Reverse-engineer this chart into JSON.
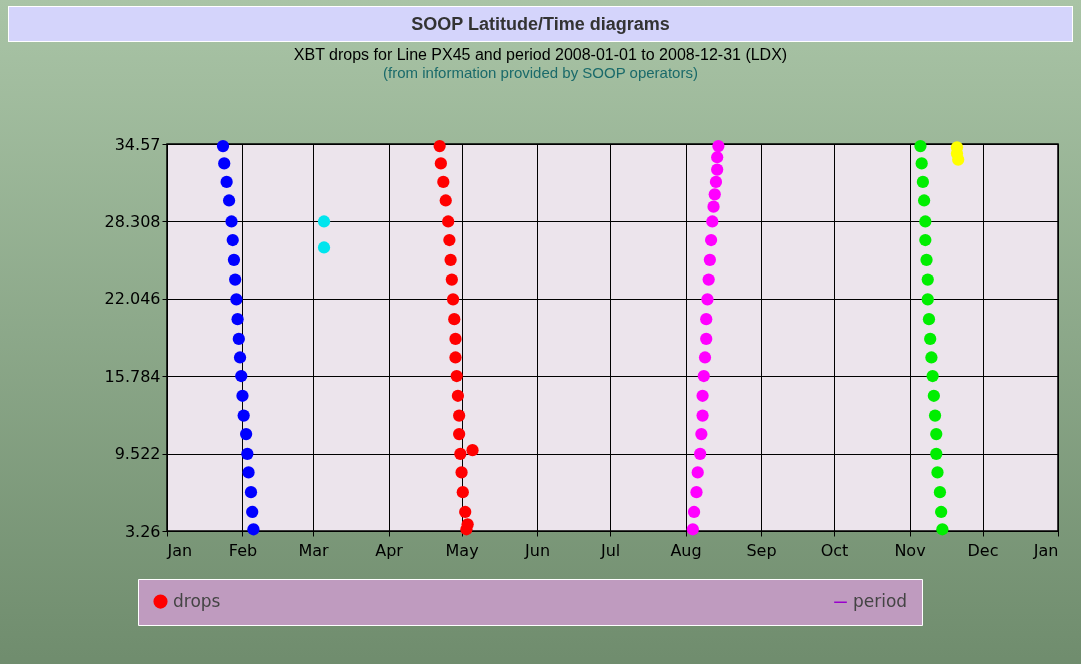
{
  "chart_data": {
    "type": "scatter",
    "title": "SOOP Latitude/Time diagrams",
    "subtitle": "XBT drops for Line PX45 and period 2008-01-01 to 2008-12-31 (LDX)",
    "annotations": [
      "(from information provided by SOOP operators)"
    ],
    "xlim": [
      "2008-01-01T00:00",
      "2009-01-01T00:00"
    ],
    "xticks": [
      {
        "value": "2008-01-01T00:00",
        "label": "Jan"
      },
      {
        "value": "2008-02-01T00:00",
        "label": "Feb"
      },
      {
        "value": "2008-03-01T00:00",
        "label": "Mar"
      },
      {
        "value": "2008-04-01T00:00",
        "label": "Apr"
      },
      {
        "value": "2008-05-01T00:00",
        "label": "May"
      },
      {
        "value": "2008-06-01T00:00",
        "label": "Jun"
      },
      {
        "value": "2008-07-01T00:00",
        "label": "Jul"
      },
      {
        "value": "2008-08-01T00:00",
        "label": "Aug"
      },
      {
        "value": "2008-09-01T00:00",
        "label": "Sep"
      },
      {
        "value": "2008-10-01T00:00",
        "label": "Oct"
      },
      {
        "value": "2008-11-01T00:00",
        "label": "Nov"
      },
      {
        "value": "2008-12-01T00:00",
        "label": "Dec"
      },
      {
        "value": "2009-01-01T00:00",
        "label": "Jan"
      }
    ],
    "ylim": [
      3.26,
      34.57
    ],
    "yticks": [
      3.26,
      9.522,
      15.784,
      22.046,
      28.308,
      34.57
    ],
    "grid": true,
    "legend": "bottom",
    "marker": "circle",
    "series": [
      {
        "color": "#0000ff",
        "x": [
          "2008-01-24T00:00",
          "2008-01-24T12:00",
          "2008-01-25T12:00",
          "2008-01-26T12:00",
          "2008-01-27T12:00",
          "2008-01-28T00:00",
          "2008-01-28T12:00",
          "2008-01-29T00:00",
          "2008-01-29T12:00",
          "2008-01-30T00:00",
          "2008-01-30T12:00",
          "2008-01-31T00:00",
          "2008-01-31T12:00",
          "2008-02-01T00:00",
          "2008-02-01T12:00",
          "2008-02-02T12:00",
          "2008-02-03T00:00",
          "2008-02-03T12:00",
          "2008-02-04T12:00",
          "2008-02-05T00:00",
          "2008-02-05T12:00"
        ],
        "values": [
          34.4,
          33.0,
          31.5,
          30.0,
          28.3,
          26.8,
          25.2,
          23.6,
          22.0,
          20.4,
          18.8,
          17.3,
          15.8,
          14.2,
          12.6,
          11.1,
          9.5,
          8.0,
          6.4,
          4.8,
          3.4
        ]
      },
      {
        "color": "#00e5ee",
        "x": [
          "2008-03-05T12:00",
          "2008-03-05T12:00"
        ],
        "values": [
          28.3,
          26.2
        ]
      },
      {
        "name": "drops",
        "color": "#ff0000",
        "x": [
          "2008-04-22T00:00",
          "2008-04-22T12:00",
          "2008-04-23T12:00",
          "2008-04-24T12:00",
          "2008-04-25T12:00",
          "2008-04-26T00:00",
          "2008-04-26T12:00",
          "2008-04-27T00:00",
          "2008-04-27T12:00",
          "2008-04-28T00:00",
          "2008-04-28T12:00",
          "2008-04-28T12:00",
          "2008-04-29T00:00",
          "2008-04-29T12:00",
          "2008-04-30T00:00",
          "2008-04-30T00:00",
          "2008-04-30T12:00",
          "2008-05-05T12:00",
          "2008-05-01T00:00",
          "2008-05-01T12:00",
          "2008-05-02T12:00",
          "2008-05-03T00:00",
          "2008-05-03T12:00"
        ],
        "values": [
          34.4,
          33.0,
          31.5,
          30.0,
          28.3,
          26.8,
          25.2,
          23.6,
          22.0,
          20.4,
          18.8,
          17.3,
          15.8,
          14.2,
          12.6,
          11.1,
          9.5,
          9.8,
          8.0,
          6.4,
          4.8,
          3.4,
          3.8
        ]
      },
      {
        "color": "#ff00ff",
        "x": [
          "2008-08-04T00:00",
          "2008-08-04T12:00",
          "2008-08-05T12:00",
          "2008-08-06T00:00",
          "2008-08-07T00:00",
          "2008-08-07T12:00",
          "2008-08-08T00:00",
          "2008-08-08T00:00",
          "2008-08-08T12:00",
          "2008-08-09T00:00",
          "2008-08-09T12:00",
          "2008-08-09T12:00",
          "2008-08-10T00:00",
          "2008-08-10T12:00",
          "2008-08-11T00:00",
          "2008-08-11T12:00",
          "2008-08-12T00:00",
          "2008-08-12T12:00",
          "2008-08-13T00:00",
          "2008-08-13T12:00",
          "2008-08-14T00:00",
          "2008-08-14T00:00",
          "2008-08-14T12:00"
        ],
        "values": [
          3.4,
          4.8,
          6.4,
          8.0,
          9.5,
          11.1,
          12.6,
          14.2,
          15.8,
          17.3,
          18.8,
          20.4,
          22.0,
          23.6,
          25.2,
          26.8,
          28.3,
          29.5,
          30.5,
          31.5,
          32.5,
          33.5,
          34.4
        ]
      },
      {
        "color": "#00ee00",
        "x": [
          "2008-11-05T12:00",
          "2008-11-06T00:00",
          "2008-11-06T12:00",
          "2008-11-07T00:00",
          "2008-11-07T12:00",
          "2008-11-07T12:00",
          "2008-11-08T00:00",
          "2008-11-08T12:00",
          "2008-11-08T12:00",
          "2008-11-09T00:00",
          "2008-11-09T12:00",
          "2008-11-10T00:00",
          "2008-11-10T12:00",
          "2008-11-11T00:00",
          "2008-11-11T12:00",
          "2008-11-12T00:00",
          "2008-11-12T00:00",
          "2008-11-12T12:00",
          "2008-11-13T12:00",
          "2008-11-14T00:00",
          "2008-11-14T12:00"
        ],
        "values": [
          34.4,
          33.0,
          31.5,
          30.0,
          28.3,
          26.8,
          25.2,
          23.6,
          22.0,
          20.4,
          18.8,
          17.3,
          15.8,
          14.2,
          12.6,
          11.1,
          9.5,
          8.0,
          6.4,
          4.8,
          3.4
        ]
      },
      {
        "color": "#ffff00",
        "x": [
          "2008-11-20T12:00",
          "2008-11-20T12:00",
          "2008-11-21T00:00"
        ],
        "values": [
          34.3,
          33.8,
          33.3
        ]
      },
      {
        "name": "period",
        "type": "line",
        "color": "#9900cc"
      }
    ]
  }
}
